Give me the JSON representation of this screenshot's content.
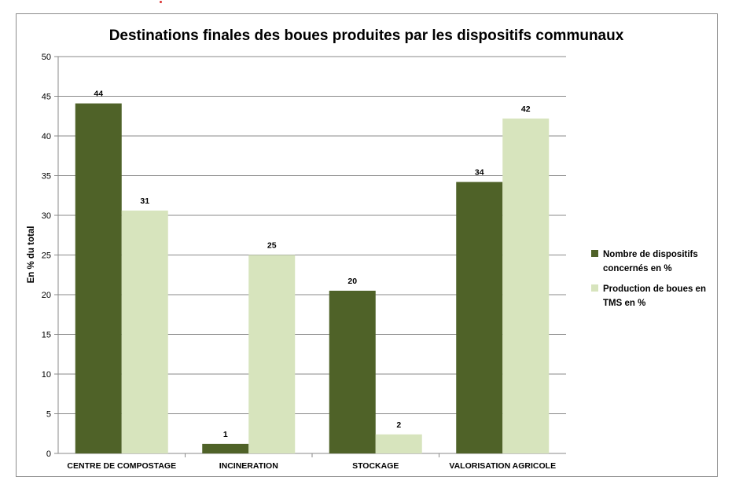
{
  "chart_data": {
    "type": "bar",
    "title": "Destinations finales des boues produites par les dispositifs communaux",
    "xlabel": "",
    "ylabel": "En % du total",
    "ylim": [
      0,
      50
    ],
    "yticks": [
      0,
      5,
      10,
      15,
      20,
      25,
      30,
      35,
      40,
      45,
      50
    ],
    "grid": true,
    "legend_position": "right",
    "categories": [
      "CENTRE DE COMPOSTAGE",
      "INCINERATION",
      "STOCKAGE",
      "VALORISATION AGRICOLE"
    ],
    "series": [
      {
        "name": "Nombre de dispositifs concernés en %",
        "legend_lines": [
          "Nombre de dispositifs",
          "concernés en %"
        ],
        "color": "#4f6228",
        "values": [
          44.1,
          1.2,
          20.5,
          34.2
        ],
        "labels": [
          "44",
          "1",
          "20",
          "34"
        ]
      },
      {
        "name": "Production de boues en TMS en %",
        "legend_lines": [
          "Production de boues en",
          "TMS en %"
        ],
        "color": "#d7e4bd",
        "values": [
          30.6,
          25.0,
          2.4,
          42.2
        ],
        "labels": [
          "31",
          "25",
          "2",
          "42"
        ]
      }
    ]
  }
}
